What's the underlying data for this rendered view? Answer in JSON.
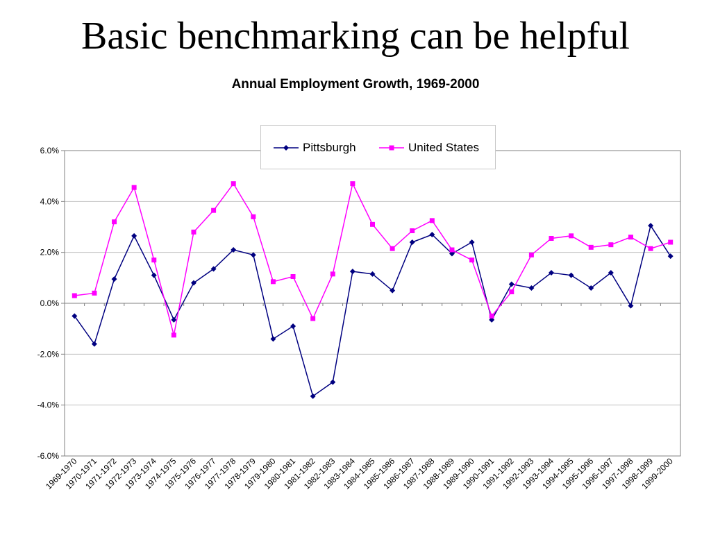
{
  "slide": {
    "title": "Basic benchmarking can be helpful"
  },
  "chart_data": {
    "type": "line",
    "title": "Annual Employment Growth, 1969-2000",
    "xlabel": "",
    "ylabel": "",
    "ylim": [
      -6.0,
      6.0
    ],
    "y_ticks": [
      "6.0%",
      "4.0%",
      "2.0%",
      "0.0%",
      "-2.0%",
      "-4.0%",
      "-6.0%"
    ],
    "y_tick_values": [
      6,
      4,
      2,
      0,
      -2,
      -4,
      -6
    ],
    "grid": true,
    "legend_position": "top-center",
    "categories": [
      "1969-1970",
      "1970-1971",
      "1971-1972",
      "1972-1973",
      "1973-1974",
      "1974-1975",
      "1975-1976",
      "1976-1977",
      "1977-1978",
      "1978-1979",
      "1979-1980",
      "1980-1981",
      "1981-1982",
      "1982-1983",
      "1983-1984",
      "1984-1985",
      "1985-1986",
      "1986-1987",
      "1987-1988",
      "1988-1989",
      "1989-1990",
      "1990-1991",
      "1991-1992",
      "1992-1993",
      "1993-1994",
      "1994-1995",
      "1995-1996",
      "1996-1997",
      "1997-1998",
      "1998-1999",
      "1999-2000"
    ],
    "series": [
      {
        "name": "Pittsburgh",
        "color": "#000080",
        "marker": "diamond",
        "values": [
          -0.5,
          -1.6,
          0.95,
          2.65,
          1.1,
          -0.65,
          0.8,
          1.35,
          2.1,
          1.9,
          -1.4,
          -0.9,
          -3.65,
          -3.1,
          1.25,
          1.15,
          0.5,
          2.4,
          2.7,
          1.95,
          2.4,
          -0.65,
          0.75,
          0.6,
          1.2,
          1.1,
          0.6,
          1.2,
          -0.1,
          3.05,
          1.85
        ]
      },
      {
        "name": "United States",
        "color": "#ff00ff",
        "marker": "square",
        "values": [
          0.3,
          0.4,
          3.2,
          4.55,
          1.7,
          -1.25,
          2.8,
          3.65,
          4.7,
          3.4,
          0.85,
          1.05,
          -0.6,
          1.15,
          4.7,
          3.1,
          2.15,
          2.85,
          3.25,
          2.1,
          1.7,
          -0.5,
          0.45,
          1.9,
          2.55,
          2.65,
          2.2,
          2.3,
          2.6,
          2.15,
          2.4
        ]
      }
    ]
  }
}
